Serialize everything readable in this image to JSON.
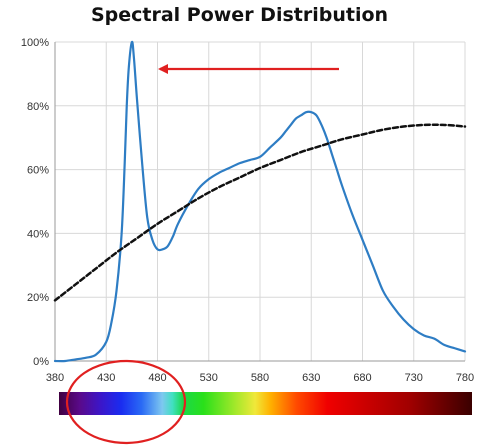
{
  "chart_data": {
    "type": "line",
    "title": "Spectral Power Distribution",
    "xlabel": "",
    "ylabel": "",
    "xlim": [
      380,
      780
    ],
    "ylim": [
      0,
      100
    ],
    "x_ticks": [
      380,
      430,
      480,
      530,
      580,
      630,
      680,
      730,
      780
    ],
    "y_ticks": [
      "0%",
      "20%",
      "40%",
      "60%",
      "80%",
      "100%"
    ],
    "y_tick_values": [
      0,
      20,
      40,
      60,
      80,
      100
    ],
    "grid": true,
    "series": [
      {
        "style": "solid",
        "color": "#2e7dc4",
        "x": [
          380,
          390,
          400,
          410,
          420,
          430,
          435,
          440,
          445,
          448,
          450,
          452,
          455,
          457,
          460,
          465,
          470,
          475,
          480,
          485,
          490,
          495,
          500,
          510,
          520,
          530,
          540,
          550,
          560,
          570,
          580,
          590,
          600,
          605,
          610,
          615,
          620,
          625,
          630,
          635,
          640,
          645,
          650,
          655,
          660,
          670,
          680,
          690,
          700,
          710,
          720,
          730,
          740,
          750,
          760,
          770,
          780
        ],
        "y": [
          0,
          0,
          0.5,
          1,
          2,
          6,
          12,
          22,
          40,
          62,
          80,
          92,
          100,
          95,
          82,
          62,
          45,
          38,
          35,
          35,
          36,
          39,
          43,
          49,
          54,
          57,
          59,
          60.5,
          62,
          63,
          64,
          67,
          70,
          72,
          74,
          76,
          77,
          78,
          78,
          77,
          74,
          70,
          65,
          60,
          55,
          46,
          38,
          30,
          22,
          17,
          13,
          10,
          8,
          7,
          5,
          4,
          3
        ]
      },
      {
        "style": "dashed",
        "color": "#111111",
        "x": [
          380,
          400,
          420,
          440,
          460,
          480,
          500,
          520,
          540,
          560,
          580,
          600,
          620,
          640,
          660,
          680,
          700,
          720,
          740,
          760,
          780
        ],
        "y": [
          19,
          24,
          29,
          34,
          38.5,
          43,
          47,
          51,
          54.5,
          57.5,
          60.5,
          63,
          65.5,
          67.5,
          69.5,
          71,
          72.5,
          73.5,
          74,
          74,
          73.5
        ]
      }
    ],
    "annotations": [
      {
        "kind": "arrow",
        "color": "#e02020"
      },
      {
        "kind": "ellipse",
        "color": "#e02020"
      }
    ],
    "spectrum_bar": {
      "x_range": [
        380,
        780
      ],
      "stops": [
        {
          "nm": 380,
          "color": "#400040"
        },
        {
          "nm": 400,
          "color": "#5a0a8a"
        },
        {
          "nm": 420,
          "color": "#3c16c8"
        },
        {
          "nm": 440,
          "color": "#1a2cf0"
        },
        {
          "nm": 460,
          "color": "#2a6af5"
        },
        {
          "nm": 480,
          "color": "#7ec8f0"
        },
        {
          "nm": 490,
          "color": "#40e0c0"
        },
        {
          "nm": 500,
          "color": "#1ad84a"
        },
        {
          "nm": 520,
          "color": "#2ae01a"
        },
        {
          "nm": 550,
          "color": "#a0e82a"
        },
        {
          "nm": 570,
          "color": "#f0e83a"
        },
        {
          "nm": 585,
          "color": "#ffb000"
        },
        {
          "nm": 610,
          "color": "#ff4a00"
        },
        {
          "nm": 640,
          "color": "#f00000"
        },
        {
          "nm": 680,
          "color": "#c80000"
        },
        {
          "nm": 720,
          "color": "#a00000"
        },
        {
          "nm": 780,
          "color": "#3a0000"
        }
      ]
    }
  }
}
